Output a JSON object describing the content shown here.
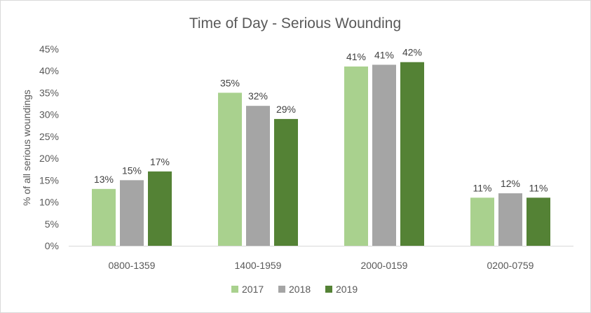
{
  "chart_data": {
    "type": "bar",
    "title": "Time of Day - Serious Wounding",
    "xlabel": "",
    "ylabel": "% of all serious woundings",
    "categories": [
      "0800-1359",
      "1400-1959",
      "2000-0159",
      "0200-0759"
    ],
    "series": [
      {
        "name": "2017",
        "color": "#a9d18e",
        "values": [
          13,
          35,
          41,
          11
        ],
        "labels": [
          "13%",
          "35%",
          "41%",
          "11%"
        ]
      },
      {
        "name": "2018",
        "color": "#a5a5a5",
        "values": [
          15,
          32,
          41.4,
          12
        ],
        "labels": [
          "15%",
          "32%",
          "41%",
          "12%"
        ]
      },
      {
        "name": "2019",
        "color": "#548235",
        "values": [
          17,
          29,
          42,
          11
        ],
        "labels": [
          "17%",
          "29%",
          "42%",
          "11%"
        ]
      }
    ],
    "ylim": [
      0,
      45
    ],
    "yticks": [
      0,
      5,
      10,
      15,
      20,
      25,
      30,
      35,
      40,
      45
    ],
    "ytick_labels": [
      "0%",
      "5%",
      "10%",
      "15%",
      "20%",
      "25%",
      "30%",
      "35%",
      "40%",
      "45%"
    ],
    "grid": false,
    "legend": "bottom"
  }
}
